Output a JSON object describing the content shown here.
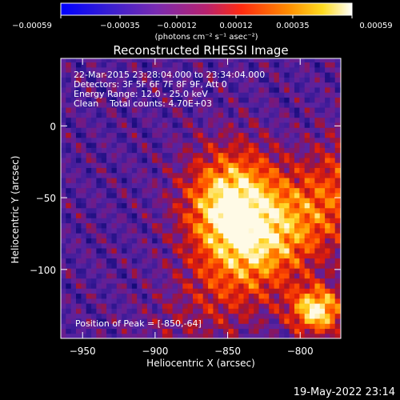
{
  "chart_data": {
    "type": "heatmap",
    "title": "Reconstructed RHESSI Image",
    "xlabel": "Heliocentric X (arcsec)",
    "ylabel": "Heliocentric Y (arcsec)",
    "xlim": [
      -965,
      -772
    ],
    "ylim": [
      -148,
      47
    ],
    "x_ticks": [
      -950,
      -900,
      -850,
      -800
    ],
    "y_ticks": [
      0,
      -50,
      -100
    ],
    "x_tick_labels": [
      "−950",
      "−900",
      "−850",
      "−800"
    ],
    "y_tick_labels": [
      "0",
      "−50",
      "−100"
    ],
    "colorbar": {
      "min": -0.00059,
      "max": 0.00059,
      "tick_values": [
        -0.00059,
        -0.00035,
        -0.00012,
        0.00012,
        0.00035,
        0.00059
      ],
      "tick_labels": [
        "−0.00059",
        "−0.00035",
        "−0.00012",
        "0.00012",
        "0.00035",
        "0.00059"
      ],
      "unit_label": "(photons cm⁻² s⁻¹ asec⁻²)",
      "colormap": [
        "#0000ff",
        "#5a2db4",
        "#9b2aa0",
        "#e62a1e",
        "#ff7800",
        "#ffd200",
        "#ffffff"
      ]
    },
    "sources": [
      {
        "x": -848,
        "y": -58,
        "peak_fraction": 1.0
      },
      {
        "x": -790,
        "y": -130,
        "peak_fraction": 0.9
      }
    ],
    "limb_arc": {
      "solar_radius_arcsec": 1000
    }
  },
  "info_lines": [
    "22-Mar-2015 23:28:04.000 to 23:34:04.000",
    "Detectors: 3F 5F 6F 7F 8F 9F, Att 0",
    "Energy Range: 12.0 - 25.0 keV",
    "Clean    Total counts: 4.70E+03"
  ],
  "peak_label": "Position of Peak = [-850,-64]",
  "footer_date": "19-May-2022 23:14"
}
